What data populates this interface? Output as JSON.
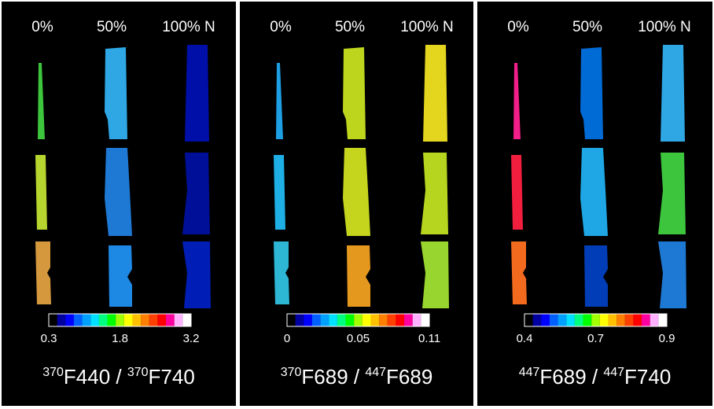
{
  "panels": [
    {
      "columns": [
        "0%",
        "50%",
        "100% N"
      ],
      "scale": [
        "0.3",
        "1.8",
        "3.2"
      ],
      "title": [
        {
          "sup": "370",
          "text": "F440 / "
        },
        {
          "sup": "370",
          "text": "F740"
        }
      ]
    },
    {
      "columns": [
        "0%",
        "50%",
        "100% N"
      ],
      "scale": [
        "0",
        "0.05",
        "0.11"
      ],
      "title": [
        {
          "sup": "370",
          "text": "F689 / "
        },
        {
          "sup": "447",
          "text": "F689"
        }
      ]
    },
    {
      "columns": [
        "0%",
        "50%",
        "100% N"
      ],
      "scale": [
        "0.4",
        "0.7",
        "0.9"
      ],
      "title": [
        {
          "sup": "447",
          "text": "F689 / "
        },
        {
          "sup": "447",
          "text": "F740"
        }
      ]
    }
  ]
}
